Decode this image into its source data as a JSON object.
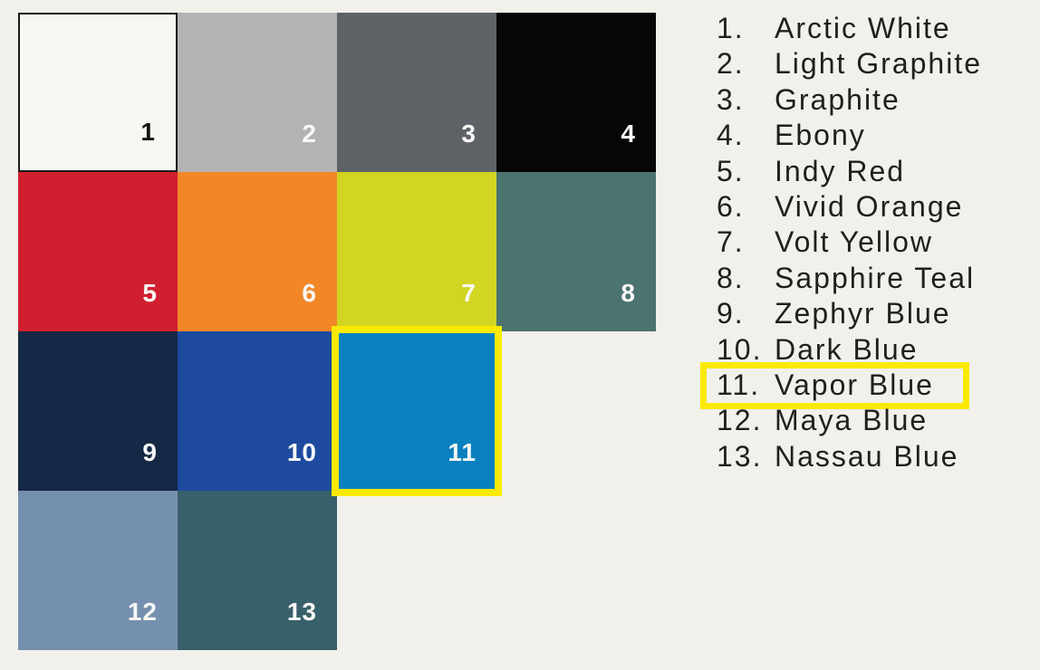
{
  "page": {
    "background_color": "#f1f0eb",
    "highlight_color": "#fae903",
    "selected_number": "11",
    "selected_name": "Vapor Blue"
  },
  "swatches": [
    {
      "number": "1",
      "name": "Arctic White",
      "color": "#f7f6f1",
      "number_color": "#141414",
      "row": 0,
      "col": 0,
      "outlined": true,
      "selected": false
    },
    {
      "number": "2",
      "name": "Light Graphite",
      "color": "#b3b3b4",
      "number_color": "#f8f8f6",
      "row": 0,
      "col": 1,
      "outlined": false,
      "selected": false
    },
    {
      "number": "3",
      "name": "Graphite",
      "color": "#5e6267",
      "number_color": "#f8f8f6",
      "row": 0,
      "col": 2,
      "outlined": false,
      "selected": false
    },
    {
      "number": "4",
      "name": "Ebony",
      "color": "#060608",
      "number_color": "#f8f8f6",
      "row": 0,
      "col": 3,
      "outlined": false,
      "selected": false
    },
    {
      "number": "5",
      "name": "Indy Red",
      "color": "#d02030",
      "number_color": "#f8f8f6",
      "row": 1,
      "col": 0,
      "outlined": false,
      "selected": false
    },
    {
      "number": "6",
      "name": "Vivid Orange",
      "color": "#f18727",
      "number_color": "#f8f8f6",
      "row": 1,
      "col": 1,
      "outlined": false,
      "selected": false
    },
    {
      "number": "7",
      "name": "Volt Yellow",
      "color": "#d2d521",
      "number_color": "#f8f8f6",
      "row": 1,
      "col": 2,
      "outlined": false,
      "selected": false
    },
    {
      "number": "8",
      "name": "Sapphire Teal",
      "color": "#4b7370",
      "number_color": "#f8f8f6",
      "row": 1,
      "col": 3,
      "outlined": false,
      "selected": false
    },
    {
      "number": "9",
      "name": "Zephyr Blue",
      "color": "#152845",
      "number_color": "#f8f8f6",
      "row": 2,
      "col": 0,
      "outlined": false,
      "selected": false
    },
    {
      "number": "10",
      "name": "Dark Blue",
      "color": "#1d4a9f",
      "number_color": "#f8f8f6",
      "row": 2,
      "col": 1,
      "outlined": false,
      "selected": false
    },
    {
      "number": "11",
      "name": "Vapor Blue",
      "color": "#0981c0",
      "number_color": "#f8f8f6",
      "row": 2,
      "col": 2,
      "outlined": false,
      "selected": true
    },
    {
      "number": "12",
      "name": "Maya Blue",
      "color": "#7590ae",
      "number_color": "#f8f8f6",
      "row": 3,
      "col": 0,
      "outlined": false,
      "selected": false
    },
    {
      "number": "13",
      "name": "Nassau Blue",
      "color": "#38606a",
      "number_color": "#f8f8f6",
      "row": 3,
      "col": 1,
      "outlined": false,
      "selected": false
    }
  ],
  "legend": {
    "items": [
      {
        "number": "1.",
        "label": "Arctic White",
        "selected": false
      },
      {
        "number": "2.",
        "label": "Light Graphite",
        "selected": false
      },
      {
        "number": "3.",
        "label": "Graphite",
        "selected": false
      },
      {
        "number": "4.",
        "label": "Ebony",
        "selected": false
      },
      {
        "number": "5.",
        "label": "Indy Red",
        "selected": false
      },
      {
        "number": "6.",
        "label": "Vivid Orange",
        "selected": false
      },
      {
        "number": "7.",
        "label": "Volt Yellow",
        "selected": false
      },
      {
        "number": "8.",
        "label": "Sapphire Teal",
        "selected": false
      },
      {
        "number": "9.",
        "label": "Zephyr Blue",
        "selected": false
      },
      {
        "number": "10.",
        "label": "Dark Blue",
        "selected": false
      },
      {
        "number": "11.",
        "label": "Vapor Blue",
        "selected": true
      },
      {
        "number": "12.",
        "label": "Maya Blue",
        "selected": false
      },
      {
        "number": "13.",
        "label": "Nassau Blue",
        "selected": false
      }
    ]
  }
}
